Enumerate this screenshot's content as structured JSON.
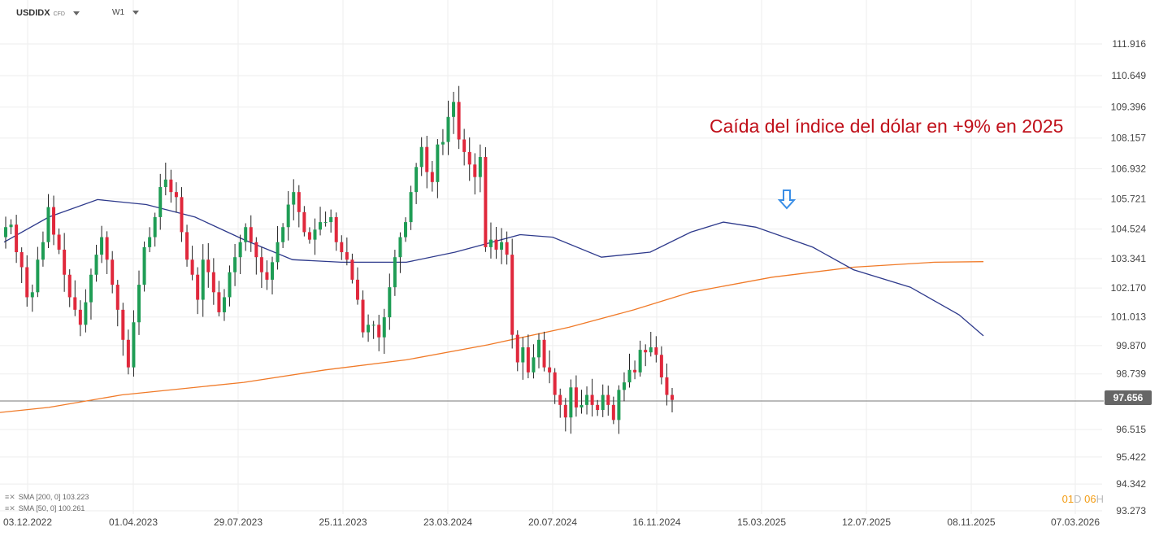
{
  "header": {
    "symbol": "USDIDX",
    "instrument_type": "CFD",
    "timeframe": "W1"
  },
  "annotation": {
    "text": "Caída del índice del dólar en +9% en 2025",
    "color": "#c0101a"
  },
  "arrow": {
    "icon": "down-arrow-icon",
    "color": "#3a8ee6"
  },
  "indicators": [
    {
      "label": "SMA [200, 0] 103.223",
      "color": "#f07a28"
    },
    {
      "label": "SMA [50, 0] 100.261",
      "color": "#2e3a8c"
    }
  ],
  "countdown": {
    "days": "01",
    "day_unit": "D",
    "hours": "06",
    "hour_unit": "H"
  },
  "chart_data": {
    "type": "candlestick",
    "title": "",
    "up_color": "#1f9d55",
    "down_color": "#e0283c",
    "current_price": 97.656,
    "y_ticks": [
      "111.916",
      "110.649",
      "109.396",
      "108.157",
      "106.932",
      "105.721",
      "104.524",
      "103.341",
      "102.170",
      "101.013",
      "99.870",
      "98.739",
      "97.656",
      "96.515",
      "95.422",
      "94.342",
      "93.273"
    ],
    "ylim": [
      93.27,
      111.92
    ],
    "x_ticks": [
      "03.12.2022",
      "01.04.2023",
      "29.07.2023",
      "25.11.2023",
      "23.03.2024",
      "20.07.2024",
      "16.11.2024",
      "15.03.2025",
      "12.07.2025",
      "08.11.2025",
      "07.03.2026"
    ],
    "close_path": [
      104.6,
      104.7,
      103.6,
      103.0,
      101.8,
      102.0,
      103.3,
      104.0,
      105.4,
      104.3,
      103.7,
      102.7,
      101.8,
      101.3,
      100.7,
      101.6,
      102.7,
      103.5,
      104.2,
      103.3,
      102.3,
      101.3,
      100.1,
      99.0,
      100.8,
      102.3,
      103.8,
      104.2,
      105.0,
      106.2,
      106.5,
      106.0,
      105.8,
      104.4,
      103.3,
      102.7,
      101.7,
      103.3,
      102.8,
      102.0,
      101.2,
      101.8,
      102.8,
      103.4,
      104.0,
      104.6,
      104.0,
      103.4,
      102.8,
      102.5,
      103.2,
      104.0,
      104.6,
      105.5,
      106.0,
      105.2,
      104.4,
      104.1,
      104.5,
      104.8,
      104.8,
      105.0,
      104.0,
      103.6,
      103.3,
      102.5,
      101.7,
      100.4,
      100.7,
      100.7,
      100.2,
      101.0,
      102.2,
      103.4,
      104.2,
      104.8,
      106.0,
      107.0,
      107.8,
      106.8,
      106.4,
      107.9,
      108.0,
      109.0,
      109.6,
      108.1,
      107.6,
      107.1,
      106.6,
      107.4,
      103.8,
      104.1,
      103.7,
      104.0,
      103.5,
      100.3,
      99.2,
      99.8,
      98.8,
      99.4,
      100.1,
      99.0,
      98.8,
      97.9,
      97.5,
      97.0,
      98.2,
      97.4,
      97.5,
      97.9,
      97.5,
      97.3,
      97.9,
      97.5,
      96.9,
      98.1,
      98.4,
      98.9,
      98.8,
      99.7,
      99.6,
      99.8,
      99.5,
      98.6,
      97.9,
      97.7
    ],
    "series": [
      {
        "name": "SMA [200, 0]",
        "color": "#f07a28",
        "points": [
          [
            0,
            97.2
          ],
          [
            60,
            97.4
          ],
          [
            150,
            97.9
          ],
          [
            300,
            98.4
          ],
          [
            400,
            98.9
          ],
          [
            500,
            99.3
          ],
          [
            600,
            99.9
          ],
          [
            700,
            100.6
          ],
          [
            780,
            101.3
          ],
          [
            850,
            102.0
          ],
          [
            950,
            102.6
          ],
          [
            1050,
            103.0
          ],
          [
            1150,
            103.2
          ],
          [
            1210,
            103.22
          ]
        ]
      },
      {
        "name": "SMA [50, 0]",
        "color": "#2e3a8c",
        "points": [
          [
            5,
            104.0
          ],
          [
            60,
            105.0
          ],
          [
            120,
            105.7
          ],
          [
            180,
            105.5
          ],
          [
            240,
            105.0
          ],
          [
            300,
            104.1
          ],
          [
            360,
            103.3
          ],
          [
            420,
            103.2
          ],
          [
            500,
            103.2
          ],
          [
            560,
            103.6
          ],
          [
            640,
            104.3
          ],
          [
            680,
            104.2
          ],
          [
            740,
            103.4
          ],
          [
            800,
            103.6
          ],
          [
            850,
            104.4
          ],
          [
            890,
            104.8
          ],
          [
            930,
            104.6
          ],
          [
            1000,
            103.8
          ],
          [
            1050,
            102.9
          ],
          [
            1120,
            102.2
          ],
          [
            1180,
            101.1
          ],
          [
            1210,
            100.26
          ]
        ]
      }
    ]
  }
}
